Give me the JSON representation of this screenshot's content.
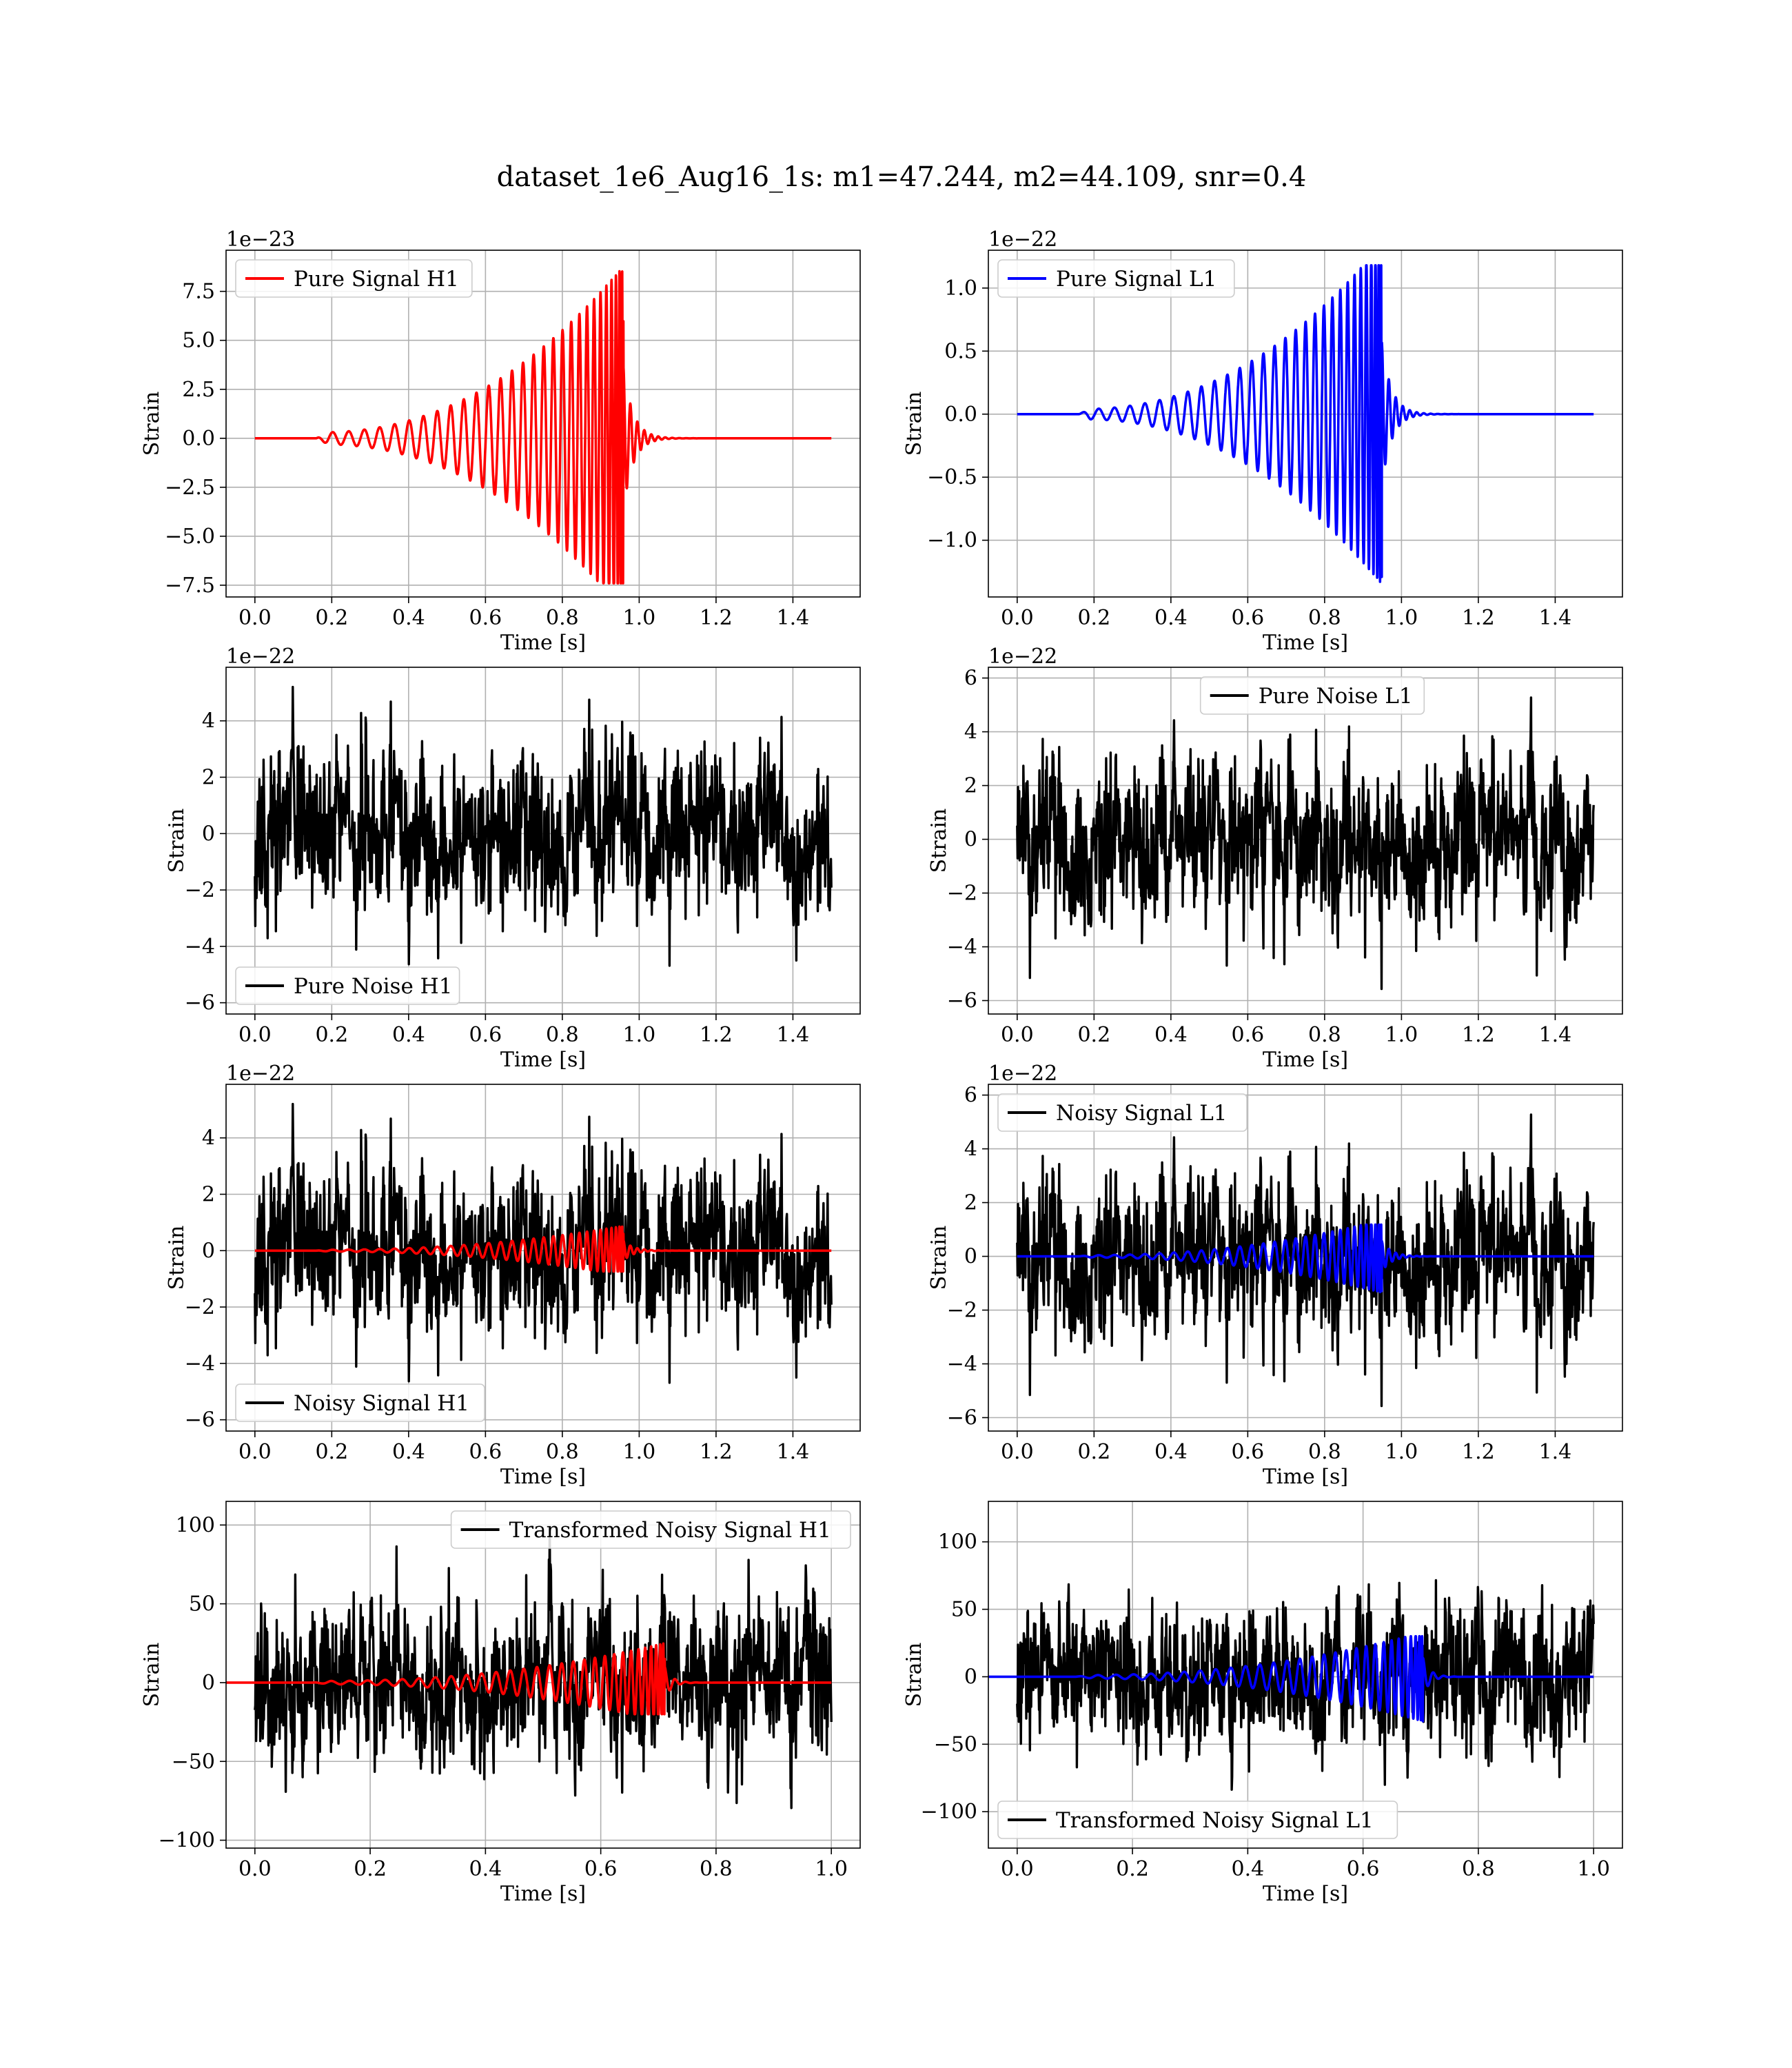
{
  "figure": {
    "title": "dataset_1e6_Aug16_1s: m1=47.244, m2=44.109, snr=0.4"
  },
  "colors": {
    "h1_signal": "#ff0000",
    "l1_signal": "#0000ff",
    "noise": "#000000",
    "grid": "#b0b0b0"
  },
  "chart_data": [
    {
      "id": "pure-signal-h1",
      "type": "line",
      "xlabel": "Time [s]",
      "ylabel": "Strain",
      "offset_text": "1e−23",
      "xlim": [
        -0.075,
        1.575
      ],
      "ylim": [
        -8.1,
        9.6
      ],
      "xticks": [
        0.0,
        0.2,
        0.4,
        0.6,
        0.8,
        1.0,
        1.2,
        1.4
      ],
      "xtick_labels": [
        "0.0",
        "0.2",
        "0.4",
        "0.6",
        "0.8",
        "1.0",
        "1.2",
        "1.4"
      ],
      "yticks": [
        -7.5,
        -5.0,
        -2.5,
        0.0,
        2.5,
        5.0,
        7.5
      ],
      "ytick_labels": [
        "−7.5",
        "−5.0",
        "−2.5",
        "0.0",
        "2.5",
        "5.0",
        "7.5"
      ],
      "grid": true,
      "legend_position": "upper left",
      "series": [
        {
          "name": "Pure Signal H1",
          "color": "#ff0000",
          "kind": "chirp",
          "t_start": 0.16,
          "t_merger": 0.955,
          "t_end": 1.5,
          "peak": 8.8,
          "trough": -7.4,
          "early_amp": 0.3,
          "ringdown": 0.025,
          "waveform": "cos"
        }
      ]
    },
    {
      "id": "pure-signal-l1",
      "type": "line",
      "xlabel": "Time [s]",
      "ylabel": "Strain",
      "offset_text": "1e−22",
      "xlim": [
        -0.075,
        1.575
      ],
      "ylim": [
        -1.45,
        1.3
      ],
      "xticks": [
        0.0,
        0.2,
        0.4,
        0.6,
        0.8,
        1.0,
        1.2,
        1.4
      ],
      "xtick_labels": [
        "0.0",
        "0.2",
        "0.4",
        "0.6",
        "0.8",
        "1.0",
        "1.2",
        "1.4"
      ],
      "yticks": [
        -1.0,
        -0.5,
        0.0,
        0.5,
        1.0
      ],
      "ytick_labels": [
        "−1.0",
        "−0.5",
        "0.0",
        "0.5",
        "1.0"
      ],
      "grid": true,
      "legend_position": "upper left",
      "series": [
        {
          "name": "Pure Signal L1",
          "color": "#0000ff",
          "kind": "chirp",
          "t_start": 0.16,
          "t_merger": 0.945,
          "t_end": 1.5,
          "peak": 1.18,
          "trough": -1.35,
          "early_amp": 0.04,
          "ringdown": 0.025,
          "waveform": "sin"
        }
      ]
    },
    {
      "id": "pure-noise-h1",
      "type": "line",
      "xlabel": "Time [s]",
      "ylabel": "Strain",
      "offset_text": "1e−22",
      "xlim": [
        -0.075,
        1.575
      ],
      "ylim": [
        -6.4,
        5.9
      ],
      "xticks": [
        0.0,
        0.2,
        0.4,
        0.6,
        0.8,
        1.0,
        1.2,
        1.4
      ],
      "xtick_labels": [
        "0.0",
        "0.2",
        "0.4",
        "0.6",
        "0.8",
        "1.0",
        "1.2",
        "1.4"
      ],
      "yticks": [
        -6,
        -4,
        -2,
        0,
        2,
        4
      ],
      "ytick_labels": [
        "−6",
        "−4",
        "−2",
        "0",
        "2",
        "4"
      ],
      "grid": true,
      "legend_position": "lower left",
      "series": [
        {
          "name": "Pure Noise H1",
          "color": "#000000",
          "kind": "noise",
          "t_start": 0.0,
          "t_end": 1.5,
          "sigma": 1.55,
          "clip": [
            -6.0,
            5.2
          ],
          "seed": 11
        }
      ]
    },
    {
      "id": "pure-noise-l1",
      "type": "line",
      "xlabel": "Time [s]",
      "ylabel": "Strain",
      "offset_text": "1e−22",
      "xlim": [
        -0.075,
        1.575
      ],
      "ylim": [
        -6.5,
        6.4
      ],
      "xticks": [
        0.0,
        0.2,
        0.4,
        0.6,
        0.8,
        1.0,
        1.2,
        1.4
      ],
      "xtick_labels": [
        "0.0",
        "0.2",
        "0.4",
        "0.6",
        "0.8",
        "1.0",
        "1.2",
        "1.4"
      ],
      "yticks": [
        -6,
        -4,
        -2,
        0,
        2,
        4,
        6
      ],
      "ytick_labels": [
        "−6",
        "−4",
        "−2",
        "0",
        "2",
        "4",
        "6"
      ],
      "grid": true,
      "legend_position": "upper center",
      "series": [
        {
          "name": "Pure Noise L1",
          "color": "#000000",
          "kind": "noise",
          "t_start": 0.0,
          "t_end": 1.5,
          "sigma": 1.6,
          "clip": [
            -5.9,
            5.9
          ],
          "seed": 29
        }
      ]
    },
    {
      "id": "noisy-signal-h1",
      "type": "line",
      "xlabel": "Time [s]",
      "ylabel": "Strain",
      "offset_text": "1e−22",
      "xlim": [
        -0.075,
        1.575
      ],
      "ylim": [
        -6.4,
        5.9
      ],
      "xticks": [
        0.0,
        0.2,
        0.4,
        0.6,
        0.8,
        1.0,
        1.2,
        1.4
      ],
      "xtick_labels": [
        "0.0",
        "0.2",
        "0.4",
        "0.6",
        "0.8",
        "1.0",
        "1.2",
        "1.4"
      ],
      "yticks": [
        -6,
        -4,
        -2,
        0,
        2,
        4
      ],
      "ytick_labels": [
        "−6",
        "−4",
        "−2",
        "0",
        "2",
        "4"
      ],
      "grid": true,
      "legend_position": "lower left",
      "series": [
        {
          "name": "Noisy Signal H1",
          "color": "#000000",
          "kind": "noise",
          "t_start": 0.0,
          "t_end": 1.5,
          "sigma": 1.55,
          "clip": [
            -5.8,
            5.2
          ],
          "seed": 11
        },
        {
          "name": "",
          "color": "#ff0000",
          "kind": "chirp",
          "t_start": 0.16,
          "t_merger": 0.955,
          "t_end": 1.5,
          "peak": 0.88,
          "trough": -0.74,
          "early_amp": 0.03,
          "ringdown": 0.025,
          "waveform": "cos"
        }
      ]
    },
    {
      "id": "noisy-signal-l1",
      "type": "line",
      "xlabel": "Time [s]",
      "ylabel": "Strain",
      "offset_text": "1e−22",
      "xlim": [
        -0.075,
        1.575
      ],
      "ylim": [
        -6.5,
        6.4
      ],
      "xticks": [
        0.0,
        0.2,
        0.4,
        0.6,
        0.8,
        1.0,
        1.2,
        1.4
      ],
      "xtick_labels": [
        "0.0",
        "0.2",
        "0.4",
        "0.6",
        "0.8",
        "1.0",
        "1.2",
        "1.4"
      ],
      "yticks": [
        -6,
        -4,
        -2,
        0,
        2,
        4,
        6
      ],
      "ytick_labels": [
        "−6",
        "−4",
        "−2",
        "0",
        "2",
        "4",
        "6"
      ],
      "grid": true,
      "legend_position": "upper left",
      "series": [
        {
          "name": "Noisy Signal L1",
          "color": "#000000",
          "kind": "noise",
          "t_start": 0.0,
          "t_end": 1.5,
          "sigma": 1.6,
          "clip": [
            -6.0,
            5.9
          ],
          "seed": 29
        },
        {
          "name": "",
          "color": "#0000ff",
          "kind": "chirp",
          "t_start": 0.16,
          "t_merger": 0.945,
          "t_end": 1.5,
          "peak": 1.18,
          "trough": -1.35,
          "early_amp": 0.04,
          "ringdown": 0.025,
          "waveform": "sin"
        }
      ]
    },
    {
      "id": "transformed-noisy-signal-h1",
      "type": "line",
      "xlabel": "Time [s]",
      "ylabel": "Strain",
      "offset_text": "",
      "xlim": [
        -0.05,
        1.05
      ],
      "ylim": [
        -105,
        115
      ],
      "xticks": [
        0.0,
        0.2,
        0.4,
        0.6,
        0.8,
        1.0
      ],
      "xtick_labels": [
        "0.0",
        "0.2",
        "0.4",
        "0.6",
        "0.8",
        "1.0"
      ],
      "yticks": [
        -100,
        -50,
        0,
        50,
        100
      ],
      "ytick_labels": [
        "−100",
        "−50",
        "0",
        "50",
        "100"
      ],
      "grid": true,
      "legend_position": "upper right",
      "series": [
        {
          "name": "Transformed Noisy Signal H1",
          "color": "#000000",
          "kind": "noise",
          "t_start": 0.0,
          "t_end": 1.0,
          "sigma": 27,
          "clip": [
            -98,
            98
          ],
          "seed": 47
        },
        {
          "name": "",
          "color": "#ff0000",
          "kind": "chirp",
          "t_start": 0.1,
          "t_merger": 0.707,
          "t_end": 1.0,
          "peak": 25,
          "trough": -20,
          "early_amp": 1.0,
          "ringdown": 0.012,
          "waveform": "cos"
        }
      ]
    },
    {
      "id": "transformed-noisy-signal-l1",
      "type": "line",
      "xlabel": "Time [s]",
      "ylabel": "Strain",
      "offset_text": "",
      "xlim": [
        -0.05,
        1.05
      ],
      "ylim": [
        -127,
        130
      ],
      "xticks": [
        0.0,
        0.2,
        0.4,
        0.6,
        0.8,
        1.0
      ],
      "xtick_labels": [
        "0.0",
        "0.2",
        "0.4",
        "0.6",
        "0.8",
        "1.0"
      ],
      "yticks": [
        -100,
        -50,
        0,
        50,
        100
      ],
      "ytick_labels": [
        "−100",
        "−50",
        "0",
        "50",
        "100"
      ],
      "grid": true,
      "legend_position": "lower left",
      "series": [
        {
          "name": "Transformed Noisy Signal L1",
          "color": "#000000",
          "kind": "noise",
          "t_start": 0.0,
          "t_end": 1.0,
          "sigma": 29,
          "clip": [
            -110,
            118
          ],
          "seed": 83
        },
        {
          "name": "",
          "color": "#0000ff",
          "kind": "chirp",
          "t_start": 0.1,
          "t_merger": 0.7,
          "t_end": 1.0,
          "peak": 30,
          "trough": -33,
          "early_amp": 1.2,
          "ringdown": 0.012,
          "waveform": "sin"
        }
      ]
    }
  ]
}
